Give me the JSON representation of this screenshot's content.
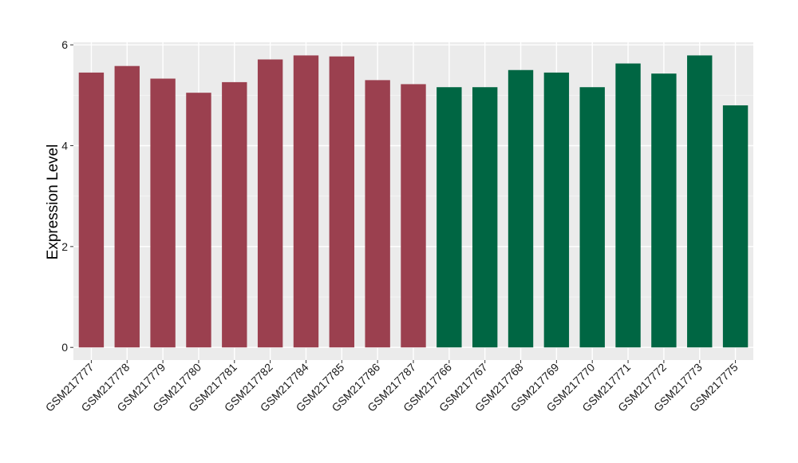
{
  "chart_data": {
    "type": "bar",
    "title": "",
    "xlabel": "",
    "ylabel": "Expression Level",
    "ylim": [
      -0.25,
      6.05
    ],
    "yticks": [
      0,
      2,
      4,
      6
    ],
    "grid": true,
    "legend": "none",
    "categories": [
      "GSM217777",
      "GSM217778",
      "GSM217779",
      "GSM217780",
      "GSM217781",
      "GSM217782",
      "GSM217784",
      "GSM217785",
      "GSM217786",
      "GSM217787",
      "GSM217766",
      "GSM217767",
      "GSM217768",
      "GSM217769",
      "GSM217770",
      "GSM217771",
      "GSM217772",
      "GSM217773",
      "GSM217775"
    ],
    "values": [
      5.45,
      5.58,
      5.33,
      5.05,
      5.26,
      5.71,
      5.79,
      5.77,
      5.3,
      5.22,
      5.16,
      5.16,
      5.5,
      5.45,
      5.16,
      5.63,
      5.43,
      5.79,
      4.8
    ],
    "groups": [
      "a",
      "a",
      "a",
      "a",
      "a",
      "a",
      "a",
      "a",
      "a",
      "a",
      "b",
      "b",
      "b",
      "b",
      "b",
      "b",
      "b",
      "b",
      "b"
    ],
    "colors": {
      "a": "#9b404f",
      "b": "#006643",
      "panel": "#ebebeb",
      "grid_major": "#ffffff",
      "grid_minor": "#f4f4f4"
    }
  }
}
